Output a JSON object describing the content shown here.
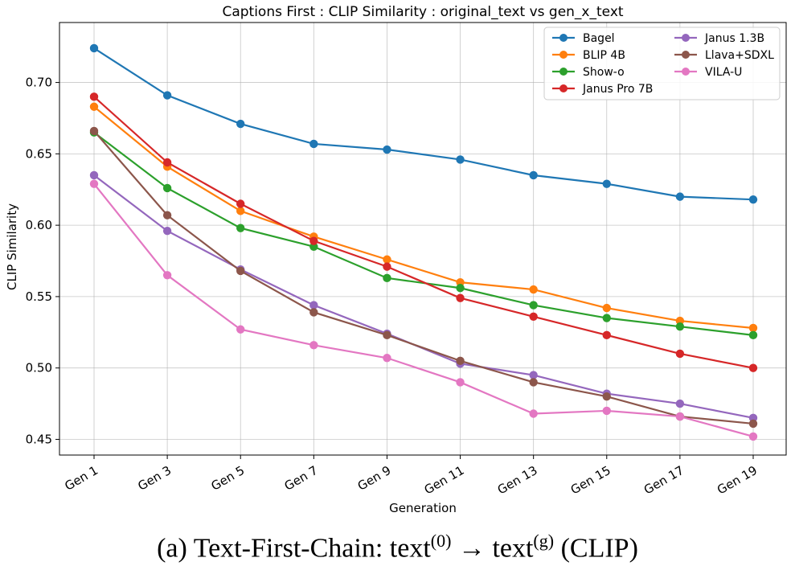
{
  "chart_data": {
    "type": "line",
    "title": "Captions First : CLIP Similarity : original_text vs gen_x_text",
    "xlabel": "Generation",
    "ylabel": "CLIP Similarity",
    "categories": [
      "Gen 1",
      "Gen 3",
      "Gen 5",
      "Gen 7",
      "Gen 9",
      "Gen 11",
      "Gen 13",
      "Gen 15",
      "Gen 17",
      "Gen 19"
    ],
    "ylim": [
      0.439,
      0.742
    ],
    "yticks": [
      "0.45",
      "0.50",
      "0.55",
      "0.60",
      "0.65",
      "0.70"
    ],
    "grid": true,
    "legend_position": "top-right",
    "series": [
      {
        "name": "Bagel",
        "color": "#1f77b4",
        "values": [
          0.724,
          0.691,
          0.671,
          0.657,
          0.653,
          0.646,
          0.635,
          0.629,
          0.62,
          0.618
        ]
      },
      {
        "name": "BLIP 4B",
        "color": "#ff7f0e",
        "values": [
          0.683,
          0.641,
          0.61,
          0.592,
          0.576,
          0.56,
          0.555,
          0.542,
          0.533,
          0.528
        ]
      },
      {
        "name": "Show-o",
        "color": "#2ca02c",
        "values": [
          0.665,
          0.626,
          0.598,
          0.585,
          0.563,
          0.556,
          0.544,
          0.535,
          0.529,
          0.523
        ]
      },
      {
        "name": "Janus Pro 7B",
        "color": "#d62728",
        "values": [
          0.69,
          0.644,
          0.615,
          0.589,
          0.571,
          0.549,
          0.536,
          0.523,
          0.51,
          0.5
        ]
      },
      {
        "name": "Janus 1.3B",
        "color": "#9467bd",
        "values": [
          0.635,
          0.596,
          0.569,
          0.544,
          0.524,
          0.503,
          0.495,
          0.482,
          0.475,
          0.465
        ]
      },
      {
        "name": "Llava+SDXL",
        "color": "#8c564b",
        "values": [
          0.666,
          0.607,
          0.568,
          0.539,
          0.523,
          0.505,
          0.49,
          0.48,
          0.466,
          0.461
        ]
      },
      {
        "name": "VILA-U",
        "color": "#e377c2",
        "values": [
          0.629,
          0.565,
          0.527,
          0.516,
          0.507,
          0.49,
          0.468,
          0.47,
          0.466,
          0.452
        ]
      }
    ]
  },
  "caption": {
    "prefix": "(a) Text-First-Chain: text",
    "sup1": "(0)",
    "arrow": " → text",
    "sup2": "(g)",
    "suffix": " (CLIP)"
  }
}
